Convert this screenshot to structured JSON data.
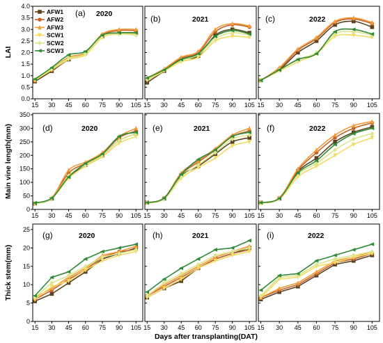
{
  "chart_data": {
    "type": "line",
    "xlabel": "Days after transplanting(DAT)",
    "x": [
      15,
      30,
      45,
      60,
      75,
      90,
      105
    ],
    "xlim": [
      13,
      111
    ],
    "x_ticks": [
      "15",
      "30",
      "45",
      "60",
      "75",
      "90",
      "105"
    ],
    "grid": false,
    "legend": {
      "placement": "top-left",
      "entries": [
        {
          "name": "AFW1",
          "color": "#5b4322",
          "marker": "square"
        },
        {
          "name": "AFW2",
          "color": "#c4622c",
          "marker": "circle"
        },
        {
          "name": "AFW3",
          "color": "#f29a36",
          "marker": "triangle-up"
        },
        {
          "name": "SCW1",
          "color": "#f4da62",
          "marker": "triangle-down"
        },
        {
          "name": "SCW2",
          "color": "#dbe68a",
          "marker": "diamond"
        },
        {
          "name": "SCW3",
          "color": "#2f8a37",
          "marker": "triangle-left"
        }
      ]
    },
    "rows": [
      {
        "ylabel": "LAI",
        "ylim": [
          0,
          4
        ],
        "y_ticks": [
          "0.0",
          "0.5",
          "1.0",
          "1.5",
          "2.0",
          "2.5",
          "3.0",
          "3.5",
          "4.0"
        ],
        "panels": [
          {
            "label": "(a)",
            "year": "2020",
            "series": {
              "AFW1": [
                0.75,
                1.2,
                1.7,
                2.0,
                2.7,
                2.85,
                2.85
              ],
              "AFW2": [
                0.8,
                1.25,
                1.75,
                1.95,
                2.75,
                2.95,
                2.95
              ],
              "AFW3": [
                0.8,
                1.3,
                1.8,
                2.0,
                2.8,
                3.0,
                3.0
              ],
              "SCW1": [
                0.8,
                1.25,
                1.7,
                1.9,
                2.65,
                2.8,
                2.8
              ],
              "SCW2": [
                0.85,
                1.3,
                1.75,
                1.95,
                2.7,
                2.8,
                2.75
              ],
              "SCW3": [
                0.85,
                1.35,
                1.9,
                2.05,
                2.75,
                2.85,
                2.85
              ]
            }
          },
          {
            "label": "(b)",
            "year": "2021",
            "series": {
              "AFW1": [
                0.7,
                1.2,
                1.7,
                1.85,
                2.75,
                3.0,
                2.85
              ],
              "AFW2": [
                0.85,
                1.25,
                1.75,
                2.0,
                2.9,
                3.2,
                3.1
              ],
              "AFW3": [
                0.9,
                1.3,
                1.8,
                2.05,
                3.0,
                3.25,
                3.15
              ],
              "SCW1": [
                0.8,
                1.2,
                1.6,
                1.8,
                2.5,
                2.7,
                2.65
              ],
              "SCW2": [
                0.85,
                1.25,
                1.65,
                1.9,
                2.6,
                2.85,
                2.75
              ],
              "SCW3": [
                0.9,
                1.25,
                1.7,
                1.95,
                2.7,
                2.95,
                2.8
              ]
            }
          },
          {
            "label": "(c)",
            "year": "2022",
            "series": {
              "AFW1": [
                0.8,
                1.25,
                2.0,
                2.5,
                3.2,
                3.35,
                3.1
              ],
              "AFW2": [
                0.8,
                1.3,
                2.1,
                2.6,
                3.3,
                3.45,
                3.25
              ],
              "AFW3": [
                0.8,
                1.35,
                2.15,
                2.65,
                3.35,
                3.5,
                3.3
              ],
              "SCW1": [
                0.8,
                1.2,
                1.6,
                1.95,
                2.7,
                2.75,
                2.65
              ],
              "SCW2": [
                0.8,
                1.25,
                1.7,
                2.0,
                2.8,
                2.9,
                2.75
              ],
              "SCW3": [
                0.8,
                1.25,
                1.7,
                1.95,
                2.9,
                3.0,
                2.8
              ]
            }
          }
        ]
      },
      {
        "ylabel": "Main vine length(mm)",
        "ylim": [
          0,
          355
        ],
        "y_ticks": [
          "0",
          "50",
          "100",
          "150",
          "200",
          "250",
          "300",
          "350"
        ],
        "panels": [
          {
            "label": "(d)",
            "year": "2020",
            "series": {
              "AFW1": [
                22,
                40,
                120,
                165,
                200,
                255,
                280
              ],
              "AFW2": [
                23,
                42,
                135,
                170,
                205,
                265,
                290
              ],
              "AFW3": [
                24,
                43,
                145,
                175,
                210,
                270,
                300
              ],
              "SCW1": [
                22,
                40,
                115,
                160,
                195,
                245,
                270
              ],
              "SCW2": [
                23,
                41,
                125,
                165,
                200,
                255,
                280
              ],
              "SCW3": [
                24,
                42,
                120,
                170,
                205,
                270,
                285
              ]
            }
          },
          {
            "label": "(e)",
            "year": "2021",
            "series": {
              "AFW1": [
                25,
                40,
                125,
                160,
                205,
                250,
                265
              ],
              "AFW2": [
                25,
                42,
                130,
                175,
                220,
                270,
                290
              ],
              "AFW3": [
                25,
                43,
                135,
                180,
                225,
                275,
                300
              ],
              "SCW1": [
                23,
                38,
                115,
                155,
                190,
                235,
                250
              ],
              "SCW2": [
                24,
                40,
                120,
                165,
                210,
                260,
                275
              ],
              "SCW3": [
                25,
                42,
                130,
                185,
                220,
                270,
                285
              ]
            }
          },
          {
            "label": "(f)",
            "year": "2022",
            "series": {
              "AFW1": [
                25,
                40,
                140,
                190,
                250,
                285,
                305
              ],
              "AFW2": [
                25,
                42,
                145,
                210,
                265,
                300,
                320
              ],
              "AFW3": [
                25,
                43,
                150,
                220,
                275,
                310,
                325
              ],
              "SCW1": [
                23,
                38,
                120,
                160,
                200,
                240,
                265
              ],
              "SCW2": [
                24,
                40,
                130,
                170,
                220,
                260,
                280
              ],
              "SCW3": [
                25,
                41,
                135,
                180,
                240,
                280,
                300
              ]
            }
          }
        ]
      },
      {
        "ylabel": "Thick stem(mm)",
        "ylim": [
          0,
          26.5
        ],
        "y_ticks": [
          "0",
          "5",
          "10",
          "15",
          "20",
          "25"
        ],
        "panels": [
          {
            "label": "(g)",
            "year": "2020",
            "series": {
              "AFW1": [
                5.5,
                7.5,
                10.5,
                13.5,
                17,
                18.5,
                20
              ],
              "AFW2": [
                6,
                8.5,
                11.5,
                14,
                17.5,
                19,
                19.5
              ],
              "AFW3": [
                6.5,
                9,
                12,
                14.5,
                18,
                19,
                20.5
              ],
              "SCW1": [
                6,
                9.5,
                11,
                14,
                16.5,
                18,
                19
              ],
              "SCW2": [
                6.5,
                10.5,
                12.5,
                15,
                17.5,
                18.5,
                19.5
              ],
              "SCW3": [
                7,
                12,
                13.5,
                17,
                19,
                20,
                21
              ]
            }
          },
          {
            "label": "(h)",
            "year": "2021",
            "series": {
              "AFW1": [
                6.5,
                9,
                11,
                14.5,
                17,
                18.5,
                20
              ],
              "AFW2": [
                7,
                9.5,
                12,
                14.5,
                17,
                18.5,
                19.5
              ],
              "AFW3": [
                7,
                10,
                12.5,
                15,
                17.5,
                19,
                20.5
              ],
              "SCW1": [
                6.5,
                9,
                11.5,
                14.5,
                16.5,
                18,
                19
              ],
              "SCW2": [
                7,
                10.5,
                13,
                15.5,
                18,
                19,
                20
              ],
              "SCW3": [
                8,
                11.5,
                14.5,
                17,
                19.5,
                20,
                22
              ]
            }
          },
          {
            "label": "(i)",
            "year": "2022",
            "series": {
              "AFW1": [
                6,
                8,
                9.5,
                12.5,
                15.5,
                16.5,
                18
              ],
              "AFW2": [
                6.5,
                8.5,
                10,
                13,
                16,
                17,
                18.5
              ],
              "AFW3": [
                6.5,
                9,
                10.5,
                13.5,
                16.5,
                17.5,
                19
              ],
              "SCW1": [
                6.5,
                11.5,
                12,
                15,
                16,
                17.5,
                18.5
              ],
              "SCW2": [
                7,
                12,
                12.5,
                15.5,
                17,
                18,
                19
              ],
              "SCW3": [
                8.5,
                12.5,
                13,
                16.5,
                18,
                19.5,
                21
              ]
            }
          }
        ]
      }
    ]
  }
}
